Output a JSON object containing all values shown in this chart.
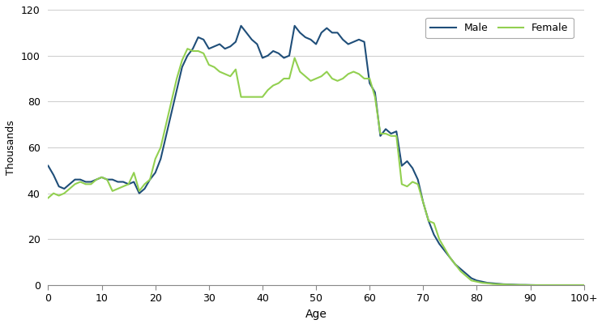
{
  "male": [
    52,
    48,
    43,
    42,
    44,
    46,
    46,
    45,
    45,
    46,
    47,
    46,
    46,
    45,
    45,
    44,
    45,
    40,
    42,
    46,
    49,
    55,
    65,
    75,
    85,
    95,
    100,
    103,
    108,
    107,
    103,
    104,
    105,
    103,
    104,
    106,
    113,
    110,
    107,
    105,
    99,
    100,
    102,
    101,
    99,
    100,
    113,
    110,
    108,
    107,
    105,
    110,
    112,
    110,
    110,
    107,
    105,
    106,
    107,
    106,
    88,
    84,
    65,
    68,
    66,
    67,
    52,
    54,
    51,
    46,
    36,
    28,
    22,
    18,
    15,
    12,
    9,
    7,
    5,
    3,
    2,
    1.5,
    1,
    0.8,
    0.6,
    0.4,
    0.3,
    0.2,
    0.1,
    0.1,
    0.05,
    0,
    0,
    0,
    0,
    0,
    0,
    0,
    0,
    0,
    0
  ],
  "female": [
    38,
    40,
    39,
    40,
    42,
    44,
    45,
    44,
    44,
    46,
    47,
    46,
    41,
    42,
    43,
    44,
    49,
    41,
    44,
    46,
    55,
    60,
    70,
    80,
    90,
    98,
    103,
    102,
    102,
    101,
    96,
    95,
    93,
    92,
    91,
    94,
    82,
    82,
    82,
    82,
    82,
    85,
    87,
    88,
    90,
    90,
    99,
    93,
    91,
    89,
    90,
    91,
    93,
    90,
    89,
    90,
    92,
    93,
    92,
    90,
    90,
    82,
    66,
    66,
    65,
    65,
    44,
    43,
    45,
    44,
    36,
    28,
    27,
    20,
    16,
    12,
    9,
    6,
    4,
    2,
    1.5,
    1,
    0.8,
    0.5,
    0.4,
    0.3,
    0.2,
    0.1,
    0.1,
    0.05,
    0,
    0,
    0,
    0,
    0,
    0,
    0,
    0,
    0,
    0,
    0
  ],
  "ages": [
    0,
    1,
    2,
    3,
    4,
    5,
    6,
    7,
    8,
    9,
    10,
    11,
    12,
    13,
    14,
    15,
    16,
    17,
    18,
    19,
    20,
    21,
    22,
    23,
    24,
    25,
    26,
    27,
    28,
    29,
    30,
    31,
    32,
    33,
    34,
    35,
    36,
    37,
    38,
    39,
    40,
    41,
    42,
    43,
    44,
    45,
    46,
    47,
    48,
    49,
    50,
    51,
    52,
    53,
    54,
    55,
    56,
    57,
    58,
    59,
    60,
    61,
    62,
    63,
    64,
    65,
    66,
    67,
    68,
    69,
    70,
    71,
    72,
    73,
    74,
    75,
    76,
    77,
    78,
    79,
    80,
    81,
    82,
    83,
    84,
    85,
    86,
    87,
    88,
    89,
    90,
    91,
    92,
    93,
    94,
    95,
    96,
    97,
    98,
    99,
    100
  ],
  "male_color": "#1F4E79",
  "female_color": "#92D050",
  "xlabel": "Age",
  "ylabel": "Thousands",
  "ylim": [
    0,
    120
  ],
  "yticks": [
    0,
    20,
    40,
    60,
    80,
    100,
    120
  ],
  "xtick_positions": [
    0,
    10,
    20,
    30,
    40,
    50,
    60,
    70,
    80,
    90,
    100
  ],
  "xticklabels": [
    "0",
    "10",
    "20",
    "30",
    "40",
    "50",
    "60",
    "70",
    "80",
    "90",
    "100+"
  ],
  "legend_labels": [
    "Male",
    "Female"
  ],
  "background_color": "#ffffff",
  "grid_color": "#d0d0d0",
  "xlim": [
    0,
    100
  ]
}
